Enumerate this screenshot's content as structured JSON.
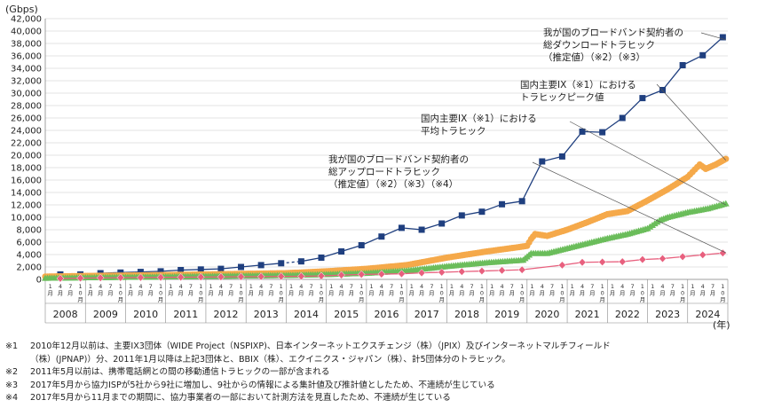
{
  "chart_data": {
    "type": "line",
    "unit_label": "(Gbps)",
    "year_unit": "(年)",
    "ylim": [
      0,
      42000
    ],
    "y_ticks": [
      0,
      2000,
      4000,
      6000,
      8000,
      10000,
      12000,
      14000,
      16000,
      18000,
      20000,
      22000,
      24000,
      26000,
      28000,
      30000,
      32000,
      34000,
      36000,
      38000,
      40000,
      42000
    ],
    "y_tick_labels": [
      "0",
      "2,000",
      "4,000",
      "6,000",
      "8,000",
      "10,000",
      "12,000",
      "14,000",
      "16,000",
      "18,000",
      "20,000",
      "22,000",
      "24,000",
      "26,000",
      "28,000",
      "30,000",
      "32,000",
      "34,000",
      "36,000",
      "38,000",
      "40,000",
      "42,000"
    ],
    "month_labels": [
      "1月",
      "4月",
      "7月",
      "10月"
    ],
    "years": [
      "2008",
      "2009",
      "2010",
      "2011",
      "2012",
      "2013",
      "2014",
      "2015",
      "2016",
      "2017",
      "2018",
      "2019",
      "2020",
      "2021",
      "2022",
      "2023",
      "2024"
    ],
    "grid": true,
    "legend_placement": "callout labels, top-right",
    "series": [
      {
        "name": "我が国のブロードバンド契約者の総ダウンロードトラヒック（推定値）（※2）（※3）",
        "marker": "square",
        "color": "#1f3f7f",
        "dashed_gap": [
          [
            2016.375,
            2017.375
          ],
          [
            2013.875,
            2014.375
          ]
        ],
        "points": [
          {
            "x": 2008.375,
            "y": 800
          },
          {
            "x": 2008.875,
            "y": 800
          },
          {
            "x": 2009.375,
            "y": 1000
          },
          {
            "x": 2009.875,
            "y": 1100
          },
          {
            "x": 2010.375,
            "y": 1200
          },
          {
            "x": 2010.875,
            "y": 1300
          },
          {
            "x": 2011.375,
            "y": 1500
          },
          {
            "x": 2011.875,
            "y": 1600
          },
          {
            "x": 2012.375,
            "y": 1700
          },
          {
            "x": 2012.875,
            "y": 2000
          },
          {
            "x": 2013.375,
            "y": 2300
          },
          {
            "x": 2013.875,
            "y": 2600
          },
          {
            "x": 2014.375,
            "y": 2900
          },
          {
            "x": 2014.875,
            "y": 3500
          },
          {
            "x": 2015.375,
            "y": 4500
          },
          {
            "x": 2015.875,
            "y": 5500
          },
          {
            "x": 2016.375,
            "y": 6900
          },
          {
            "x": 2016.875,
            "y": 8300
          },
          {
            "x": 2017.375,
            "y": 8000
          },
          {
            "x": 2017.875,
            "y": 9000
          },
          {
            "x": 2018.375,
            "y": 10300
          },
          {
            "x": 2018.875,
            "y": 10900
          },
          {
            "x": 2019.375,
            "y": 12100
          },
          {
            "x": 2019.875,
            "y": 12600
          },
          {
            "x": 2020.375,
            "y": 19000
          },
          {
            "x": 2020.875,
            "y": 19800
          },
          {
            "x": 2021.375,
            "y": 23800
          },
          {
            "x": 2021.875,
            "y": 23700
          },
          {
            "x": 2022.375,
            "y": 26000
          },
          {
            "x": 2022.875,
            "y": 29200
          },
          {
            "x": 2023.375,
            "y": 30500
          },
          {
            "x": 2023.875,
            "y": 34500
          },
          {
            "x": 2024.375,
            "y": 36100
          },
          {
            "x": 2024.875,
            "y": 39000
          }
        ]
      },
      {
        "name": "国内主要IX（※1）におけるトラヒックピーク値",
        "marker": "circle",
        "color": "#f5a94a",
        "points": [
          {
            "x": 2008.0,
            "y": 450
          },
          {
            "x": 2009.0,
            "y": 550
          },
          {
            "x": 2010.0,
            "y": 620
          },
          {
            "x": 2011.0,
            "y": 700
          },
          {
            "x": 2012.0,
            "y": 800
          },
          {
            "x": 2013.0,
            "y": 900
          },
          {
            "x": 2014.0,
            "y": 1000
          },
          {
            "x": 2015.0,
            "y": 1300
          },
          {
            "x": 2016.0,
            "y": 1700
          },
          {
            "x": 2017.0,
            "y": 2300
          },
          {
            "x": 2018.0,
            "y": 3500
          },
          {
            "x": 2019.0,
            "y": 4500
          },
          {
            "x": 2019.8,
            "y": 5200
          },
          {
            "x": 2020.0,
            "y": 5400
          },
          {
            "x": 2020.1,
            "y": 6500
          },
          {
            "x": 2020.2,
            "y": 7300
          },
          {
            "x": 2020.5,
            "y": 7000
          },
          {
            "x": 2021.0,
            "y": 8000
          },
          {
            "x": 2021.5,
            "y": 9200
          },
          {
            "x": 2022.0,
            "y": 10500
          },
          {
            "x": 2022.5,
            "y": 11000
          },
          {
            "x": 2023.0,
            "y": 12700
          },
          {
            "x": 2023.5,
            "y": 14500
          },
          {
            "x": 2024.0,
            "y": 16500
          },
          {
            "x": 2024.3,
            "y": 18500
          },
          {
            "x": 2024.45,
            "y": 17800
          },
          {
            "x": 2024.7,
            "y": 18500
          },
          {
            "x": 2024.95,
            "y": 19400
          }
        ]
      },
      {
        "name": "国内主要IX（※1）における平均トラヒック",
        "marker": "triangle",
        "color": "#6bbd5b",
        "points": [
          {
            "x": 2008.0,
            "y": 200
          },
          {
            "x": 2009.0,
            "y": 280
          },
          {
            "x": 2010.0,
            "y": 350
          },
          {
            "x": 2011.0,
            "y": 420
          },
          {
            "x": 2012.0,
            "y": 500
          },
          {
            "x": 2013.0,
            "y": 580
          },
          {
            "x": 2014.0,
            "y": 650
          },
          {
            "x": 2015.0,
            "y": 800
          },
          {
            "x": 2016.0,
            "y": 1000
          },
          {
            "x": 2017.0,
            "y": 1400
          },
          {
            "x": 2018.0,
            "y": 2100
          },
          {
            "x": 2019.0,
            "y": 2700
          },
          {
            "x": 2019.9,
            "y": 3100
          },
          {
            "x": 2020.1,
            "y": 4200
          },
          {
            "x": 2020.5,
            "y": 4200
          },
          {
            "x": 2021.0,
            "y": 5000
          },
          {
            "x": 2021.5,
            "y": 5800
          },
          {
            "x": 2022.0,
            "y": 6600
          },
          {
            "x": 2022.5,
            "y": 7300
          },
          {
            "x": 2023.0,
            "y": 8200
          },
          {
            "x": 2023.3,
            "y": 9500
          },
          {
            "x": 2023.5,
            "y": 10000
          },
          {
            "x": 2024.0,
            "y": 10800
          },
          {
            "x": 2024.5,
            "y": 11400
          },
          {
            "x": 2024.95,
            "y": 12200
          }
        ]
      },
      {
        "name": "我が国のブロードバンド契約者の総アップロードトラヒック（推定値）（※2）（※3）（※4）",
        "marker": "diamond",
        "color": "#e8607e",
        "points": [
          {
            "x": 2008.375,
            "y": 150
          },
          {
            "x": 2008.875,
            "y": 200
          },
          {
            "x": 2009.375,
            "y": 250
          },
          {
            "x": 2009.875,
            "y": 280
          },
          {
            "x": 2010.375,
            "y": 300
          },
          {
            "x": 2010.875,
            "y": 330
          },
          {
            "x": 2011.375,
            "y": 350
          },
          {
            "x": 2011.875,
            "y": 380
          },
          {
            "x": 2012.375,
            "y": 400
          },
          {
            "x": 2012.875,
            "y": 430
          },
          {
            "x": 2013.375,
            "y": 450
          },
          {
            "x": 2013.875,
            "y": 480
          },
          {
            "x": 2014.375,
            "y": 500
          },
          {
            "x": 2014.875,
            "y": 550
          },
          {
            "x": 2015.375,
            "y": 700
          },
          {
            "x": 2015.875,
            "y": 800
          },
          {
            "x": 2016.375,
            "y": 850
          },
          {
            "x": 2016.875,
            "y": 900
          },
          {
            "x": 2017.375,
            "y": 1050
          },
          {
            "x": 2017.875,
            "y": 1150
          },
          {
            "x": 2018.375,
            "y": 1250
          },
          {
            "x": 2018.875,
            "y": 1350
          },
          {
            "x": 2019.375,
            "y": 1450
          },
          {
            "x": 2019.875,
            "y": 1550
          },
          {
            "x": 2020.875,
            "y": 2300
          },
          {
            "x": 2021.375,
            "y": 2750
          },
          {
            "x": 2021.875,
            "y": 2800
          },
          {
            "x": 2022.375,
            "y": 2850
          },
          {
            "x": 2022.875,
            "y": 3200
          },
          {
            "x": 2023.375,
            "y": 3350
          },
          {
            "x": 2023.875,
            "y": 3650
          },
          {
            "x": 2024.375,
            "y": 3950
          },
          {
            "x": 2024.875,
            "y": 4250
          }
        ]
      }
    ],
    "annotations": [
      {
        "lines": [
          "我が国のブロードバンド契約者の",
          "総ダウンロードトラヒック",
          "（推定値）（※2）（※3）"
        ],
        "series": 0
      },
      {
        "lines": [
          "国内主要IX（※1）における",
          "トラヒックピーク値"
        ],
        "series": 1
      },
      {
        "lines": [
          "国内主要IX（※1）における",
          "平均トラヒック"
        ],
        "series": 2
      },
      {
        "lines": [
          "我が国のブロードバンド契約者の",
          "総アップロードトラヒック",
          "（推定値）（※2）（※3）（※4）"
        ],
        "series": 3
      }
    ]
  },
  "notes": [
    {
      "mark": "※1",
      "lines": [
        "2010年12月以前は、主要IX3団体（WIDE Project（NSPIXP)、日本インターネットエクスチェンジ（株）（JPIX）及びインターネットマルチフィールド",
        "（株）(JPNAP)）分、2011年1月以降は上記3団体と、BBIX（株）、エクイニクス・ジャパン（株）、計5団体分のトラヒック。"
      ]
    },
    {
      "mark": "※2",
      "lines": [
        "2011年5月以前は、携帯電話網との間の移動通信トラヒックの一部が含まれる"
      ]
    },
    {
      "mark": "※3",
      "lines": [
        "2017年5月から協力ISPが5社から9社に増加し、9社からの情報による集計値及び推計値としたため、不連続が生じている"
      ]
    },
    {
      "mark": "※4",
      "lines": [
        "2017年5月から11月までの期間に、協力事業者の一部において計測方法を見直したため、不連続が生じている"
      ]
    }
  ]
}
